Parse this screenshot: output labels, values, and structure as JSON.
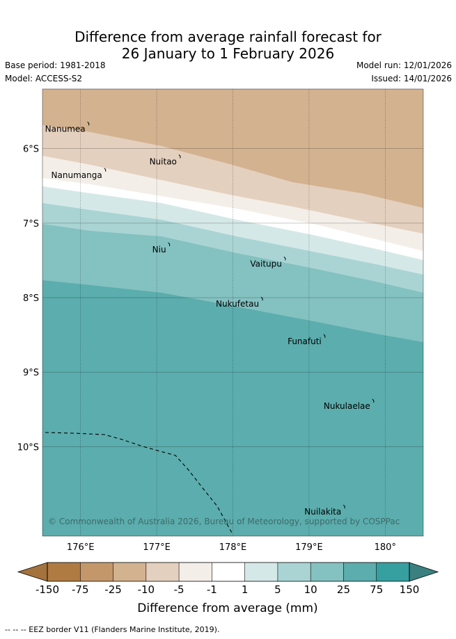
{
  "title": {
    "line1": "Difference from average rainfall forecast for",
    "line2": "26 January to 1 February 2026"
  },
  "meta": {
    "base_period": "Base period: 1981-2018",
    "model": "Model: ACCESS-S2",
    "model_run": "Model run: 12/01/2026",
    "issued": "Issued: 14/01/2026"
  },
  "map": {
    "lon_range": [
      175.5,
      180.5
    ],
    "lat_range": [
      -5.2,
      -11.2
    ],
    "lon_ticks": [
      {
        "value": 176,
        "label": "176°E"
      },
      {
        "value": 177,
        "label": "177°E"
      },
      {
        "value": 178,
        "label": "178°E"
      },
      {
        "value": 179,
        "label": "179°E"
      },
      {
        "value": 180,
        "label": "180°"
      }
    ],
    "lat_ticks": [
      {
        "value": -6,
        "label": "6°S"
      },
      {
        "value": -7,
        "label": "7°S"
      },
      {
        "value": -8,
        "label": "8°S"
      },
      {
        "value": -9,
        "label": "9°S"
      },
      {
        "value": -10,
        "label": "10°S"
      }
    ],
    "islands": [
      {
        "name": "Nanumea",
        "lon": 176.1,
        "lat": -5.67
      },
      {
        "name": "Nuitao",
        "lon": 177.3,
        "lat": -6.11
      },
      {
        "name": "Nanumanga",
        "lon": 176.32,
        "lat": -6.29
      },
      {
        "name": "Niu",
        "lon": 177.16,
        "lat": -7.29
      },
      {
        "name": "Vaitupu",
        "lon": 178.68,
        "lat": -7.48
      },
      {
        "name": "Nukufetau",
        "lon": 178.38,
        "lat": -8.02
      },
      {
        "name": "Funafuti",
        "lon": 179.2,
        "lat": -8.52
      },
      {
        "name": "Nukulaelae",
        "lon": 179.84,
        "lat": -9.39
      },
      {
        "name": "Nuilakita",
        "lon": 179.46,
        "lat": -10.81
      }
    ],
    "copyright": "© Commonwealth of Australia 2026, Bureau of Meteorology, supported by COSPPac"
  },
  "legend": {
    "title": "Difference from average (mm)",
    "ticks": [
      "-150",
      "-75",
      "-25",
      "-10",
      "-5",
      "-1",
      "1",
      "5",
      "10",
      "25",
      "75",
      "150"
    ],
    "colors": [
      "#b07b42",
      "#c4976a",
      "#d3b290",
      "#e4d0be",
      "#f3eee8",
      "#ffffff",
      "#d5e8e8",
      "#aad4d4",
      "#84c1c1",
      "#5cadad",
      "#369f9f"
    ],
    "under_color": "#a4723d",
    "over_color": "#3b8080"
  },
  "footer": "--  --  -- EEZ border V11 (Flanders Marine Institute, 2019)."
}
